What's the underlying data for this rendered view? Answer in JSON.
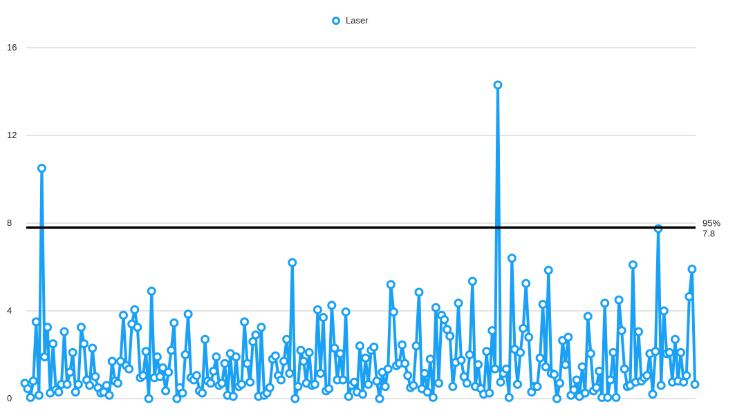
{
  "chart_data": {
    "type": "line",
    "title": "",
    "xlabel": "",
    "ylabel": "",
    "ylim": [
      0,
      16
    ],
    "yticks": [
      0,
      4,
      8,
      12,
      16
    ],
    "grid": "horizontal",
    "legend_position": "top-center",
    "series": [
      {
        "name": "Laser",
        "color": "#1aa0f5",
        "marker": "open-circle",
        "values": [
          0.7,
          0.45,
          0.05,
          0.8,
          3.5,
          0.15,
          10.5,
          1.9,
          3.25,
          0.25,
          2.5,
          0.4,
          0.3,
          0.65,
          3.05,
          0.65,
          1.2,
          2.1,
          0.3,
          0.65,
          3.25,
          2.5,
          0.85,
          0.6,
          2.3,
          1.0,
          0.5,
          0.25,
          0.3,
          0.6,
          0.15,
          1.7,
          0.8,
          0.7,
          1.7,
          3.8,
          1.5,
          1.35,
          3.4,
          4.05,
          3.25,
          0.95,
          1.05,
          2.15,
          0.0,
          4.9,
          0.95,
          1.9,
          1.0,
          1.4,
          0.35,
          1.2,
          2.2,
          3.45,
          0.0,
          0.5,
          0.25,
          2.0,
          3.85,
          0.95,
          0.85,
          1.05,
          0.35,
          0.25,
          2.7,
          0.8,
          0.7,
          1.25,
          1.9,
          0.6,
          0.7,
          1.6,
          0.15,
          2.05,
          0.1,
          1.9,
          0.55,
          0.65,
          3.5,
          1.6,
          0.75,
          2.6,
          2.9,
          0.1,
          3.25,
          0.15,
          0.25,
          0.5,
          1.8,
          1.95,
          1.05,
          0.85,
          1.7,
          2.7,
          1.15,
          6.2,
          0.0,
          0.55,
          2.2,
          1.7,
          0.7,
          2.1,
          0.6,
          0.65,
          4.05,
          1.15,
          3.7,
          0.35,
          0.45,
          4.25,
          2.3,
          0.85,
          2.05,
          0.85,
          3.95,
          0.1,
          0.6,
          0.75,
          0.3,
          2.4,
          0.2,
          1.85,
          0.65,
          2.2,
          2.35,
          0.8,
          0.0,
          1.2,
          0.55,
          1.35,
          5.2,
          3.95,
          1.5,
          1.6,
          2.45,
          1.6,
          1.05,
          0.5,
          0.6,
          2.4,
          4.85,
          0.45,
          1.15,
          0.3,
          1.8,
          0.05,
          4.15,
          0.7,
          3.8,
          3.6,
          3.15,
          2.85,
          0.55,
          1.65,
          4.35,
          1.75,
          1.0,
          0.7,
          2.0,
          5.35,
          0.55,
          1.55,
          0.45,
          0.2,
          2.15,
          0.25,
          3.1,
          1.35,
          14.3,
          0.75,
          1.15,
          1.35,
          0.05,
          6.4,
          2.25,
          0.65,
          2.1,
          3.2,
          5.25,
          2.8,
          0.3,
          0.55,
          0.55,
          1.85,
          4.3,
          1.45,
          5.85,
          1.15,
          1.1,
          0.0,
          0.7,
          2.65,
          1.55,
          2.8,
          0.15,
          0.4,
          0.85,
          0.1,
          1.45,
          0.25,
          3.75,
          2.05,
          0.35,
          0.5,
          1.25,
          0.05,
          4.35,
          0.05,
          0.85,
          2.1,
          0.05,
          4.5,
          3.1,
          1.35,
          0.55,
          0.6,
          6.1,
          0.75,
          3.05,
          0.8,
          0.95,
          1.05,
          2.05,
          0.2,
          2.15,
          7.75,
          0.6,
          4.0,
          2.05,
          2.1,
          0.75,
          2.7,
          0.8,
          2.1,
          0.75,
          1.05,
          4.65,
          5.9,
          0.65
        ]
      }
    ],
    "reference_line": {
      "value": 7.8,
      "label_percent": "95%",
      "label_value": "7.8",
      "color": "#000000"
    }
  }
}
